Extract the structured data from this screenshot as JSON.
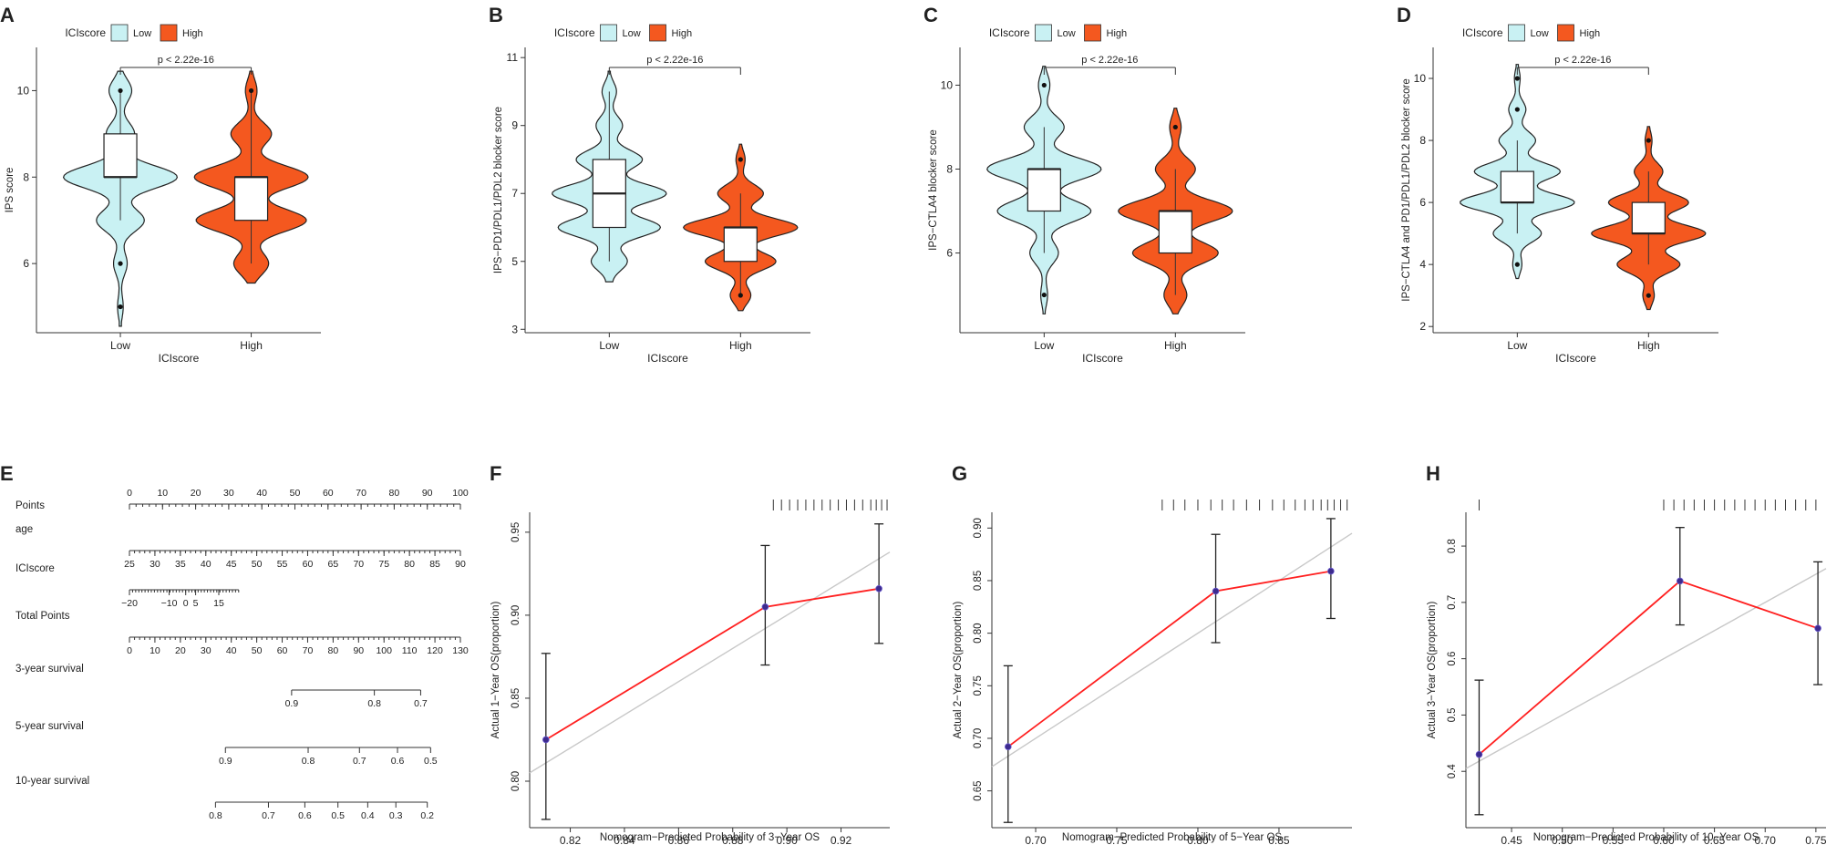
{
  "legend_title": "ICIscore",
  "colors": {
    "low": "#c9f1f3",
    "high": "#f4581f",
    "line": "#ff2020",
    "point": "#3d2b8e",
    "diag": "#c8c8c8",
    "axis": "#333333"
  },
  "chart_data": [
    {
      "panel": "A",
      "type": "violin",
      "xlabel": "ICIscore",
      "ylabel": "IPS score",
      "categories": [
        "Low",
        "High"
      ],
      "legend": [
        "Low",
        "High"
      ],
      "ylim": [
        4.4,
        11.0
      ],
      "yticks": [
        6,
        8,
        10
      ],
      "pvalue": "p < 2.22e-16",
      "box": [
        {
          "group": "Low",
          "q1": 8,
          "median": 8,
          "q3": 9,
          "whisker_low": 7,
          "whisker_high": 10,
          "outliers": [
            6,
            5,
            10
          ]
        },
        {
          "group": "High",
          "q1": 7,
          "median": 8,
          "q3": 8,
          "whisker_low": 6,
          "whisker_high": 10,
          "outliers": [
            10
          ]
        }
      ]
    },
    {
      "panel": "B",
      "type": "violin",
      "xlabel": "ICIscore",
      "ylabel": "IPS−PD1/PDL1/PDL2 blocker score",
      "categories": [
        "Low",
        "High"
      ],
      "legend": [
        "Low",
        "High"
      ],
      "ylim": [
        2.9,
        11.3
      ],
      "yticks": [
        3,
        5,
        7,
        9,
        11
      ],
      "pvalue": "p < 2.22e-16",
      "box": [
        {
          "group": "Low",
          "q1": 6,
          "median": 7,
          "q3": 8,
          "whisker_low": 5,
          "whisker_high": 10,
          "outliers": []
        },
        {
          "group": "High",
          "q1": 5,
          "median": 6,
          "q3": 6,
          "whisker_low": 4,
          "whisker_high": 7,
          "outliers": [
            8,
            4
          ]
        }
      ]
    },
    {
      "panel": "C",
      "type": "violin",
      "xlabel": "ICIscore",
      "ylabel": "IPS−CTLA4 blocker score",
      "categories": [
        "Low",
        "High"
      ],
      "legend": [
        "Low",
        "High"
      ],
      "ylim": [
        4.1,
        10.9
      ],
      "yticks": [
        6,
        8,
        10
      ],
      "pvalue": "p < 2.22e-16",
      "box": [
        {
          "group": "Low",
          "q1": 7,
          "median": 8,
          "q3": 8,
          "whisker_low": 6,
          "whisker_high": 9,
          "outliers": [
            10,
            5
          ]
        },
        {
          "group": "High",
          "q1": 6,
          "median": 7,
          "q3": 7,
          "whisker_low": 5,
          "whisker_high": 8,
          "outliers": [
            9
          ]
        }
      ]
    },
    {
      "panel": "D",
      "type": "violin",
      "xlabel": "ICIscore",
      "ylabel": "IPS−CTLA4 and PD1/PDL1/PDL2 blocker score",
      "categories": [
        "Low",
        "High"
      ],
      "legend": [
        "Low",
        "High"
      ],
      "ylim": [
        1.8,
        11.0
      ],
      "yticks": [
        2,
        4,
        6,
        8,
        10
      ],
      "pvalue": "p < 2.22e-16",
      "box": [
        {
          "group": "Low",
          "q1": 6,
          "median": 6,
          "q3": 7,
          "whisker_low": 5,
          "whisker_high": 8,
          "outliers": [
            10,
            9,
            4
          ]
        },
        {
          "group": "High",
          "q1": 5,
          "median": 5,
          "q3": 6,
          "whisker_low": 4,
          "whisker_high": 7,
          "outliers": [
            8,
            3
          ]
        }
      ]
    },
    {
      "panel": "E",
      "type": "nomogram",
      "rows": [
        {
          "label": "Points",
          "ticks": [
            "0",
            "10",
            "20",
            "30",
            "40",
            "50",
            "60",
            "70",
            "80",
            "90",
            "100"
          ],
          "start": 0,
          "end": 100,
          "above": true,
          "minor": 5
        },
        {
          "label": "age",
          "ticks": [
            "25",
            "30",
            "35",
            "40",
            "45",
            "50",
            "55",
            "60",
            "65",
            "70",
            "75",
            "80",
            "85",
            "90"
          ],
          "start": 0,
          "end": 100,
          "above": false,
          "minor": 1
        },
        {
          "label": "ICIscore",
          "ticks": [
            "−20",
            "−10",
            "0",
            "5",
            "15"
          ],
          "tick_points": [
            0,
            12,
            17,
            20,
            27
          ],
          "start": 0,
          "end": 33,
          "above": false,
          "minor": 1
        },
        {
          "label": "Total Points",
          "ticks": [
            "0",
            "10",
            "20",
            "30",
            "40",
            "50",
            "60",
            "70",
            "80",
            "90",
            "100",
            "110",
            "120",
            "130"
          ],
          "start": 0,
          "end": 100,
          "above": false,
          "minor": 5
        },
        {
          "label": "3-year survival",
          "ticks": [
            "0.9",
            "0.8",
            "0.7"
          ],
          "tick_points": [
            49,
            74,
            88
          ],
          "start": 49,
          "end": 88,
          "above": false,
          "minor": 0
        },
        {
          "label": "5-year survival",
          "ticks": [
            "0.9",
            "0.8",
            "0.7",
            "0.6",
            "0.5"
          ],
          "tick_points": [
            29,
            54,
            69.5,
            81,
            91
          ],
          "start": 29,
          "end": 91,
          "above": false,
          "minor": 0
        },
        {
          "label": "10-year survival",
          "ticks": [
            "0.8",
            "0.7",
            "0.6",
            "0.5",
            "0.4",
            "0.3",
            "0.2"
          ],
          "tick_points": [
            26,
            42,
            53,
            63,
            72,
            80.5,
            90
          ],
          "start": 26,
          "end": 90,
          "above": false,
          "minor": 0
        }
      ]
    },
    {
      "panel": "F",
      "type": "line",
      "xlabel": "Nomogram−Predicted Probability of 3−Year OS",
      "ylabel": "Actual 1−Year OS(proportion)",
      "xlim": [
        0.805,
        0.938
      ],
      "ylim": [
        0.772,
        0.962
      ],
      "xticks": [
        0.82,
        0.84,
        0.86,
        0.88,
        0.9,
        0.92
      ],
      "yticks": [
        0.8,
        0.85,
        0.9,
        0.95
      ],
      "xdec": 2,
      "ydec": 2,
      "x": [
        0.811,
        0.892,
        0.934
      ],
      "y": [
        0.825,
        0.905,
        0.916
      ],
      "err_low": [
        0.777,
        0.87,
        0.883
      ],
      "err_high": [
        0.877,
        0.942,
        0.955
      ],
      "rug": [
        0.895,
        0.898,
        0.901,
        0.904,
        0.907,
        0.91,
        0.913,
        0.916,
        0.919,
        0.922,
        0.925,
        0.928,
        0.931,
        0.933,
        0.935,
        0.937
      ]
    },
    {
      "panel": "G",
      "type": "line",
      "xlabel": "Nomogram−Predicted Probability of 5−Year OS",
      "ylabel": "Actual 2−Year OS(proportion)",
      "xlim": [
        0.673,
        0.895
      ],
      "ylim": [
        0.615,
        0.915
      ],
      "xticks": [
        0.7,
        0.75,
        0.8,
        0.85
      ],
      "yticks": [
        0.65,
        0.7,
        0.75,
        0.8,
        0.85,
        0.9
      ],
      "xdec": 2,
      "ydec": 2,
      "x": [
        0.683,
        0.811,
        0.882
      ],
      "y": [
        0.692,
        0.84,
        0.859
      ],
      "err_low": [
        0.62,
        0.791,
        0.814
      ],
      "err_high": [
        0.769,
        0.894,
        0.909
      ],
      "rug": [
        0.778,
        0.785,
        0.792,
        0.8,
        0.808,
        0.815,
        0.822,
        0.83,
        0.838,
        0.846,
        0.853,
        0.86,
        0.866,
        0.871,
        0.876,
        0.88,
        0.884,
        0.888,
        0.892
      ]
    },
    {
      "panel": "H",
      "type": "line",
      "xlabel": "Nomogram−Predicted Probability of 10−Year OS",
      "ylabel": "Actual 3−Year OS(proportion)",
      "xlim": [
        0.405,
        0.76
      ],
      "ylim": [
        0.3,
        0.86
      ],
      "xticks": [
        0.45,
        0.5,
        0.55,
        0.6,
        0.65,
        0.7,
        0.75
      ],
      "yticks": [
        0.4,
        0.5,
        0.6,
        0.7,
        0.8
      ],
      "xdec": 2,
      "ydec": 1,
      "x": [
        0.418,
        0.616,
        0.752
      ],
      "y": [
        0.43,
        0.738,
        0.654
      ],
      "err_low": [
        0.323,
        0.66,
        0.554
      ],
      "err_high": [
        0.562,
        0.833,
        0.772
      ],
      "rug": [
        0.418,
        0.6,
        0.61,
        0.62,
        0.63,
        0.64,
        0.65,
        0.66,
        0.67,
        0.68,
        0.69,
        0.7,
        0.71,
        0.72,
        0.73,
        0.74,
        0.75
      ]
    }
  ]
}
